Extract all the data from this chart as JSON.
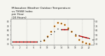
{
  "title": "Milwaukee Weather Outdoor Temperature\nvs THSW Index\nper Hour\n(24 Hours)",
  "title_fontsize": 3.0,
  "bg_color": "#f5f5f0",
  "temp_color": "#cc0000",
  "thsw_color": "#ff8800",
  "black_dot_color": "#222222",
  "hours": [
    0,
    1,
    2,
    3,
    4,
    5,
    6,
    7,
    8,
    9,
    10,
    11,
    12,
    13,
    14,
    15,
    16,
    17,
    18,
    19,
    20,
    21,
    22,
    23
  ],
  "temp_segments": [
    {
      "x": [
        0,
        1,
        2,
        3,
        4,
        5,
        6,
        7
      ],
      "y": [
        35,
        35,
        35,
        35,
        35,
        35,
        35,
        35
      ]
    },
    {
      "x": [
        14,
        15,
        16
      ],
      "y": [
        62,
        62,
        62
      ]
    },
    {
      "x": [
        19,
        20,
        21,
        22
      ],
      "y": [
        48,
        46,
        44,
        42
      ]
    }
  ],
  "temp_dots": [
    0,
    1,
    2,
    3,
    4,
    5,
    6,
    7,
    8,
    9,
    10,
    11,
    12,
    13,
    14,
    15,
    16,
    17,
    18,
    19,
    20,
    21,
    22,
    23
  ],
  "temp_dot_y": [
    35,
    35,
    35,
    35,
    35,
    35,
    35,
    35,
    37,
    40,
    45,
    52,
    58,
    63,
    62,
    62,
    62,
    57,
    52,
    48,
    46,
    44,
    42,
    40
  ],
  "thsw_x": [
    9,
    10,
    11,
    12,
    13,
    14,
    15,
    16,
    17,
    18,
    19,
    20,
    21,
    22
  ],
  "thsw_y": [
    38,
    47,
    57,
    70,
    78,
    76,
    72,
    65,
    57,
    48,
    40,
    35,
    32,
    30
  ],
  "ylim": [
    27,
    85
  ],
  "yticks_left": [
    30,
    40,
    50,
    60,
    70,
    80
  ],
  "yticks_right": [
    30,
    40,
    50,
    60,
    70,
    80
  ],
  "xticks": [
    0,
    2,
    4,
    6,
    8,
    10,
    12,
    14,
    16,
    18,
    20,
    22
  ],
  "grid_color": "#aaaaaa",
  "grid_hours": [
    4,
    8,
    12,
    16,
    20
  ]
}
